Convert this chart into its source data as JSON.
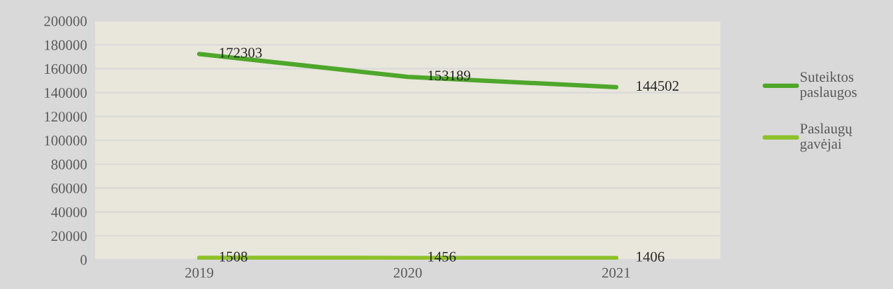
{
  "chart_data": {
    "type": "line",
    "categories": [
      "2019",
      "2020",
      "2021"
    ],
    "series": [
      {
        "name": "Suteiktos\npaslaugos",
        "color": "#4ea72a",
        "values": [
          172303,
          153189,
          144502
        ]
      },
      {
        "name": "Paslaugų\ngavėjai",
        "color": "#8dc12a",
        "values": [
          1508,
          1456,
          1406
        ]
      }
    ],
    "ylim": [
      0,
      200000
    ],
    "yticks": [
      0,
      20000,
      40000,
      60000,
      80000,
      100000,
      120000,
      140000,
      160000,
      180000,
      200000
    ],
    "grid": "y",
    "legend": "right",
    "data_labels": true,
    "marker": "none",
    "line_style": "solid"
  }
}
